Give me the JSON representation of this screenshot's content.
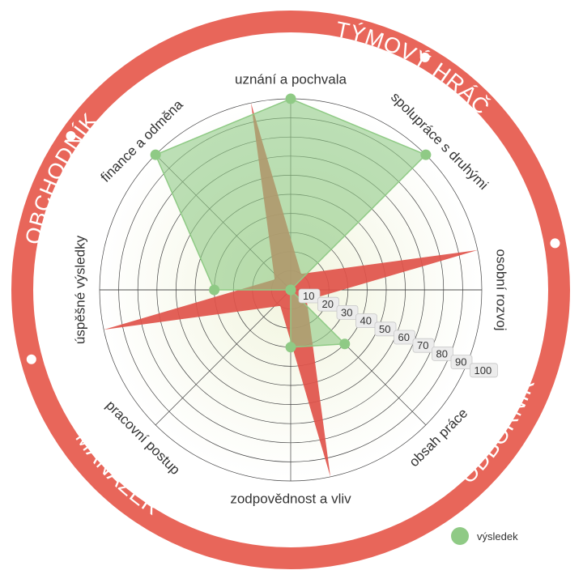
{
  "chart_data": {
    "type": "radar",
    "axes": [
      "uznání a pochvala",
      "spolupráce s druhými",
      "osobní rozvoj",
      "obsah práce",
      "zodpovědnost a vliv",
      "pracovní postup",
      "úspěšné výsledky",
      "finance a odměna"
    ],
    "rlim": [
      0,
      100
    ],
    "ticks": [
      "10",
      "20",
      "30",
      "40",
      "50",
      "60",
      "70",
      "80",
      "90",
      "100"
    ],
    "grid": true,
    "series": [
      {
        "name": "výsledek",
        "color": "#8fca85",
        "values": [
          100,
          100,
          0,
          40,
          30,
          0,
          40,
          100
        ]
      }
    ],
    "spikes": {
      "color": "#e0534a",
      "values": [
        100,
        10,
        100,
        10,
        100,
        10,
        100,
        10
      ],
      "rotation_deg": -12
    },
    "ring_labels": [
      "TÝMOVÝ HRÁČ",
      "ODBORNÍK",
      "MANAŽER",
      "OBCHODNÍK"
    ],
    "ring_color": "#e8665a",
    "legend": {
      "label": "výsledek",
      "position": "bottom-right",
      "color": "#8fca85"
    }
  }
}
